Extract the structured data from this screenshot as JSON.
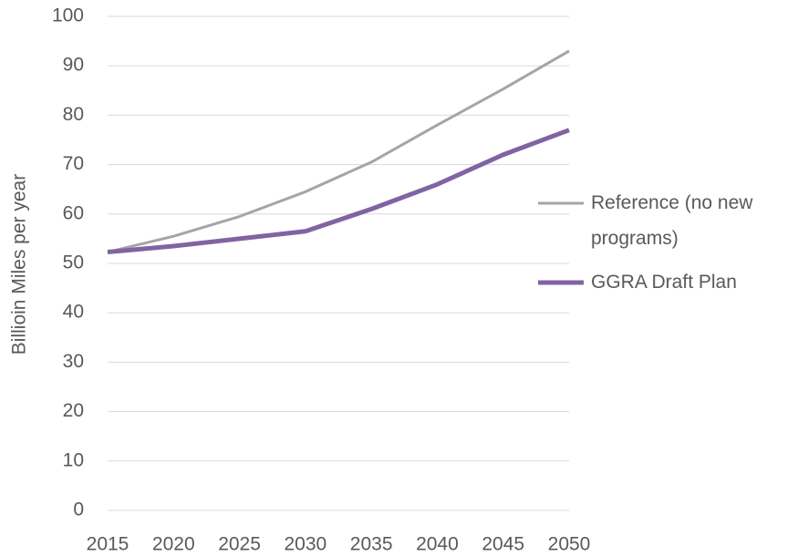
{
  "chart_data": {
    "type": "line",
    "y_label": "Billioin Miles per year",
    "x": [
      2015,
      2020,
      2025,
      2030,
      2035,
      2040,
      2045,
      2050
    ],
    "series": [
      {
        "name": "Reference (no new programs)",
        "color": "#a5a5a5",
        "values": [
          52.3,
          55.5,
          59.5,
          64.5,
          70.5,
          78,
          85.3,
          93
        ]
      },
      {
        "name": "GGRA Draft Plan",
        "color": "#8064a2",
        "values": [
          52.3,
          53.5,
          55,
          56.5,
          61,
          66,
          72,
          77
        ]
      }
    ],
    "xlim": [
      2015,
      2050
    ],
    "xticks": [
      2015,
      2020,
      2025,
      2030,
      2035,
      2040,
      2045,
      2050
    ],
    "ylim": [
      0,
      100
    ],
    "yticks": [
      0,
      10,
      20,
      30,
      40,
      50,
      60,
      70,
      80,
      90,
      100
    ],
    "grid": true,
    "legend": "right"
  }
}
